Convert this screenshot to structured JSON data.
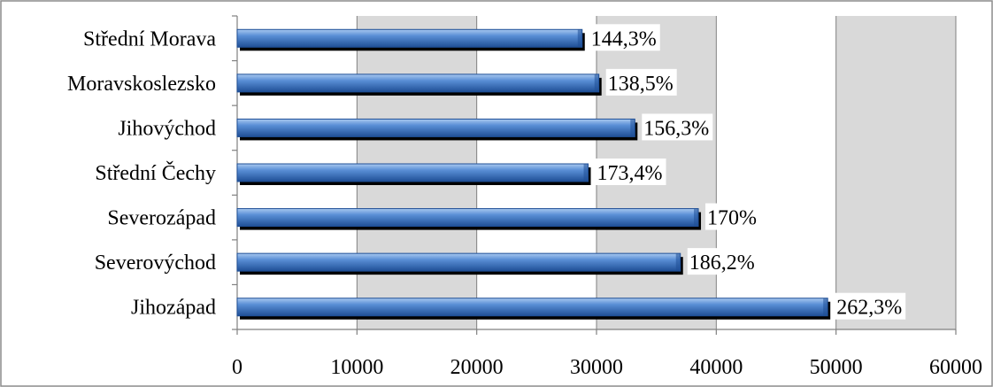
{
  "chart_data": {
    "type": "bar",
    "orientation": "horizontal",
    "categories": [
      "Střední Morava",
      "Moravskoslezsko",
      "Jihovýchod",
      "Střední Čechy",
      "Severozápad",
      "Severovýchod",
      "Jihozápad"
    ],
    "values": [
      28800,
      30200,
      33200,
      29300,
      38500,
      37000,
      49300
    ],
    "data_labels": [
      "144,3%",
      "138,5%",
      "156,3%",
      "173,4%",
      "170%",
      "186,2%",
      "262,3%"
    ],
    "x_ticks": [
      "0",
      "10000",
      "20000",
      "30000",
      "40000",
      "50000",
      "60000"
    ],
    "xlim": [
      0,
      60000
    ],
    "grid": true,
    "legend": "none",
    "colors": {
      "bar_light": "#8fb8ea",
      "bar_mid": "#4f86d0",
      "bar_dark": "#1f4f96",
      "bar_shadow": "#000000",
      "band_gray": "#d9d9d9",
      "band_white": "#ffffff",
      "grid": "#808080",
      "frame": "#8c8c8c"
    }
  }
}
